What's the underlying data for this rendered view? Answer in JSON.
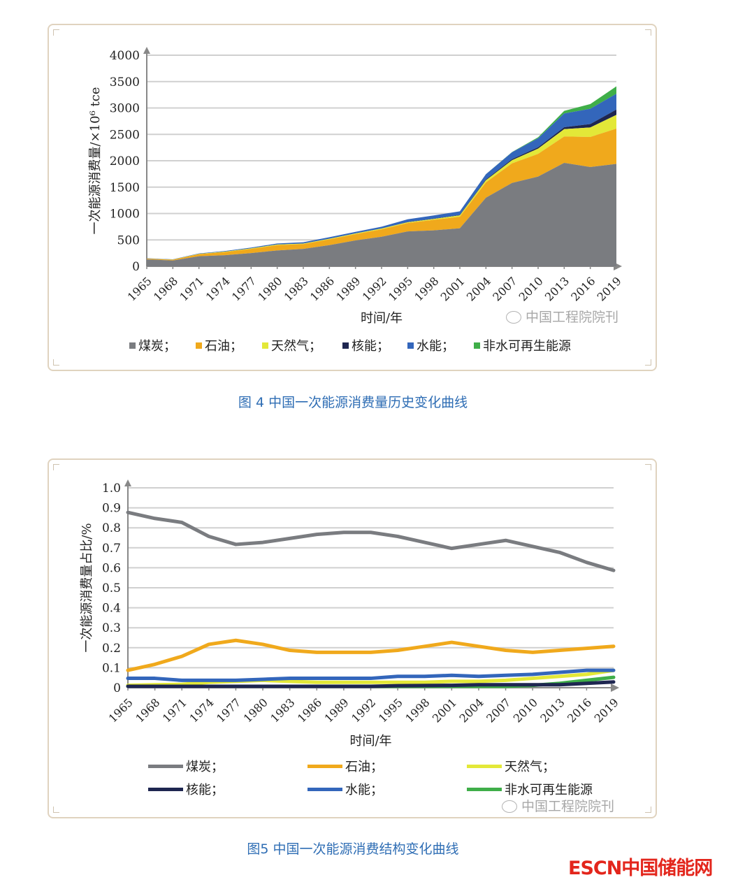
{
  "figure4": {
    "caption": "图 4 中国一次能源消费量历史变化曲线",
    "watermark": "中国工程院院刊"
  },
  "figure5": {
    "caption": "图5 中国一次能源消费结构变化曲线",
    "watermark": "中国工程院院刊"
  },
  "logo": {
    "text": "ESCN中国储能网"
  },
  "colors": {
    "coal": "#7a7c80",
    "oil": "#f0a91c",
    "gas": "#e3e838",
    "nuclear": "#1e2650",
    "hydro": "#3366bb",
    "renewable": "#3fae49",
    "caption": "#2e6db4",
    "logo": "#e3261c"
  },
  "chart_data": [
    {
      "type": "area",
      "stacked": true,
      "xlabel": "时间/年",
      "ylabel": "一次能源消费量/×10⁶ tce",
      "ylim": [
        0,
        4000
      ],
      "yticks": [
        "0",
        "500",
        "1000",
        "1500",
        "2000",
        "2500",
        "3000",
        "3500",
        "4000"
      ],
      "xticks": [
        "1965",
        "1968",
        "1971",
        "1974",
        "1977",
        "1980",
        "1983",
        "1986",
        "1989",
        "1992",
        "1995",
        "1998",
        "2001",
        "2004",
        "2007",
        "2010",
        "2013",
        "2016",
        "2019"
      ],
      "grid": true,
      "legend_position": "bottom",
      "x": [
        1965,
        1968,
        1971,
        1974,
        1977,
        1980,
        1983,
        1986,
        1989,
        1992,
        1995,
        1998,
        2001,
        2004,
        2007,
        2010,
        2013,
        2016,
        2019
      ],
      "series": [
        {
          "name": "煤炭；",
          "color": "#7a7c80",
          "values": [
            130,
            110,
            190,
            210,
            250,
            300,
            330,
            400,
            490,
            560,
            660,
            680,
            720,
            1300,
            1580,
            1700,
            1960,
            1880,
            1940
          ]
        },
        {
          "name": "石油；",
          "color": "#f0a91c",
          "values": [
            15,
            15,
            40,
            60,
            80,
            100,
            90,
            110,
            120,
            140,
            160,
            200,
            220,
            290,
            370,
            430,
            500,
            570,
            670
          ]
        },
        {
          "name": "天然气；",
          "color": "#e3e838",
          "values": [
            2,
            3,
            5,
            8,
            10,
            12,
            10,
            12,
            12,
            15,
            15,
            18,
            25,
            40,
            60,
            100,
            140,
            180,
            260
          ]
        },
        {
          "name": "核能；",
          "color": "#1e2650",
          "values": [
            0,
            0,
            0,
            0,
            0,
            0,
            0,
            0,
            0,
            0,
            5,
            5,
            7,
            15,
            20,
            25,
            35,
            65,
            100
          ]
        },
        {
          "name": "水能；",
          "color": "#3366bb",
          "values": [
            5,
            5,
            8,
            12,
            15,
            20,
            25,
            30,
            30,
            35,
            50,
            60,
            70,
            100,
            130,
            170,
            260,
            290,
            300
          ]
        },
        {
          "name": "非水可再生能源",
          "color": "#3fae49",
          "values": [
            0,
            0,
            0,
            0,
            0,
            0,
            0,
            0,
            0,
            0,
            0,
            0,
            0,
            2,
            5,
            20,
            50,
            90,
            140
          ]
        }
      ]
    },
    {
      "type": "line",
      "xlabel": "时间/年",
      "ylabel": "一次能源消费量占比/%",
      "ylim": [
        0,
        1.0
      ],
      "yticks": [
        "0",
        "0.1",
        "0.2",
        "0.3",
        "0.4",
        "0.5",
        "0.6",
        "0.7",
        "0.8",
        "0.9",
        "1.0"
      ],
      "xticks": [
        "1965",
        "1968",
        "1971",
        "1974",
        "1977",
        "1980",
        "1983",
        "1986",
        "1989",
        "1992",
        "1995",
        "1998",
        "2001",
        "2004",
        "2007",
        "2010",
        "2013",
        "2016",
        "2019"
      ],
      "grid": true,
      "legend_position": "bottom",
      "x": [
        1965,
        1968,
        1971,
        1974,
        1977,
        1980,
        1983,
        1986,
        1989,
        1992,
        1995,
        1998,
        2001,
        2004,
        2007,
        2010,
        2013,
        2016,
        2019
      ],
      "series": [
        {
          "name": "煤炭；",
          "color": "#7a7c80",
          "values": [
            0.87,
            0.84,
            0.82,
            0.75,
            0.71,
            0.72,
            0.74,
            0.76,
            0.77,
            0.77,
            0.75,
            0.72,
            0.69,
            0.71,
            0.73,
            0.7,
            0.67,
            0.62,
            0.58
          ]
        },
        {
          "name": "石油；",
          "color": "#f0a91c",
          "values": [
            0.08,
            0.11,
            0.15,
            0.21,
            0.23,
            0.21,
            0.18,
            0.17,
            0.17,
            0.17,
            0.18,
            0.2,
            0.22,
            0.2,
            0.18,
            0.17,
            0.18,
            0.19,
            0.2
          ]
        },
        {
          "name": "天然气；",
          "color": "#e3e838",
          "values": [
            0.005,
            0.008,
            0.01,
            0.02,
            0.025,
            0.03,
            0.025,
            0.02,
            0.02,
            0.02,
            0.02,
            0.02,
            0.025,
            0.025,
            0.03,
            0.04,
            0.05,
            0.06,
            0.08
          ]
        },
        {
          "name": "核能；",
          "color": "#1e2650",
          "values": [
            0,
            0,
            0,
            0,
            0,
            0,
            0,
            0,
            0,
            0,
            0.003,
            0.004,
            0.005,
            0.008,
            0.008,
            0.008,
            0.008,
            0.015,
            0.022
          ]
        },
        {
          "name": "水能；",
          "color": "#3366bb",
          "values": [
            0.04,
            0.04,
            0.03,
            0.03,
            0.03,
            0.035,
            0.04,
            0.04,
            0.04,
            0.04,
            0.05,
            0.05,
            0.055,
            0.05,
            0.055,
            0.06,
            0.07,
            0.08,
            0.08
          ]
        },
        {
          "name": "非水可再生能源",
          "color": "#3fae49",
          "values": [
            0,
            0,
            0,
            0,
            0,
            0,
            0,
            0,
            0,
            0,
            0,
            0,
            0,
            0,
            0,
            0.005,
            0.015,
            0.03,
            0.045
          ]
        }
      ]
    }
  ]
}
